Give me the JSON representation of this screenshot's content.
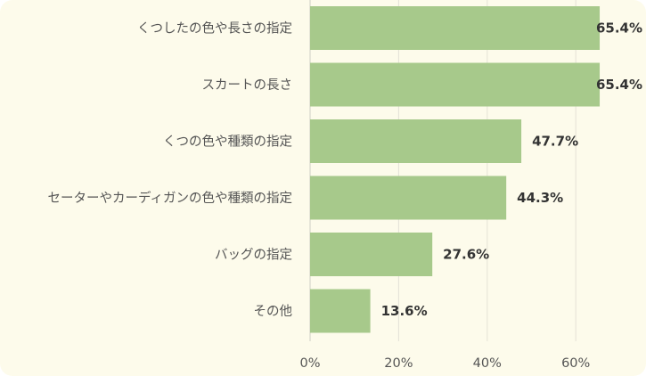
{
  "chart_data": {
    "type": "bar",
    "orientation": "horizontal",
    "categories": [
      "くつしたの色や長さの指定",
      "スカートの長さ",
      "くつの色や種類の指定",
      "セーターやカーディガンの色や種類の指定",
      "バッグの指定",
      "その他"
    ],
    "values": [
      65.4,
      65.4,
      47.7,
      44.3,
      27.6,
      13.6
    ],
    "value_labels": [
      "65.4%",
      "65.4%",
      "47.7%",
      "44.3%",
      "27.6%",
      "13.6%"
    ],
    "x_ticks": [
      "0%",
      "20%",
      "40%",
      "60%"
    ],
    "xlim": [
      0,
      70
    ],
    "grid": true,
    "bar_color": "#a7c98b",
    "background": "#fdfbeb",
    "title": "",
    "xlabel": "",
    "ylabel": ""
  }
}
